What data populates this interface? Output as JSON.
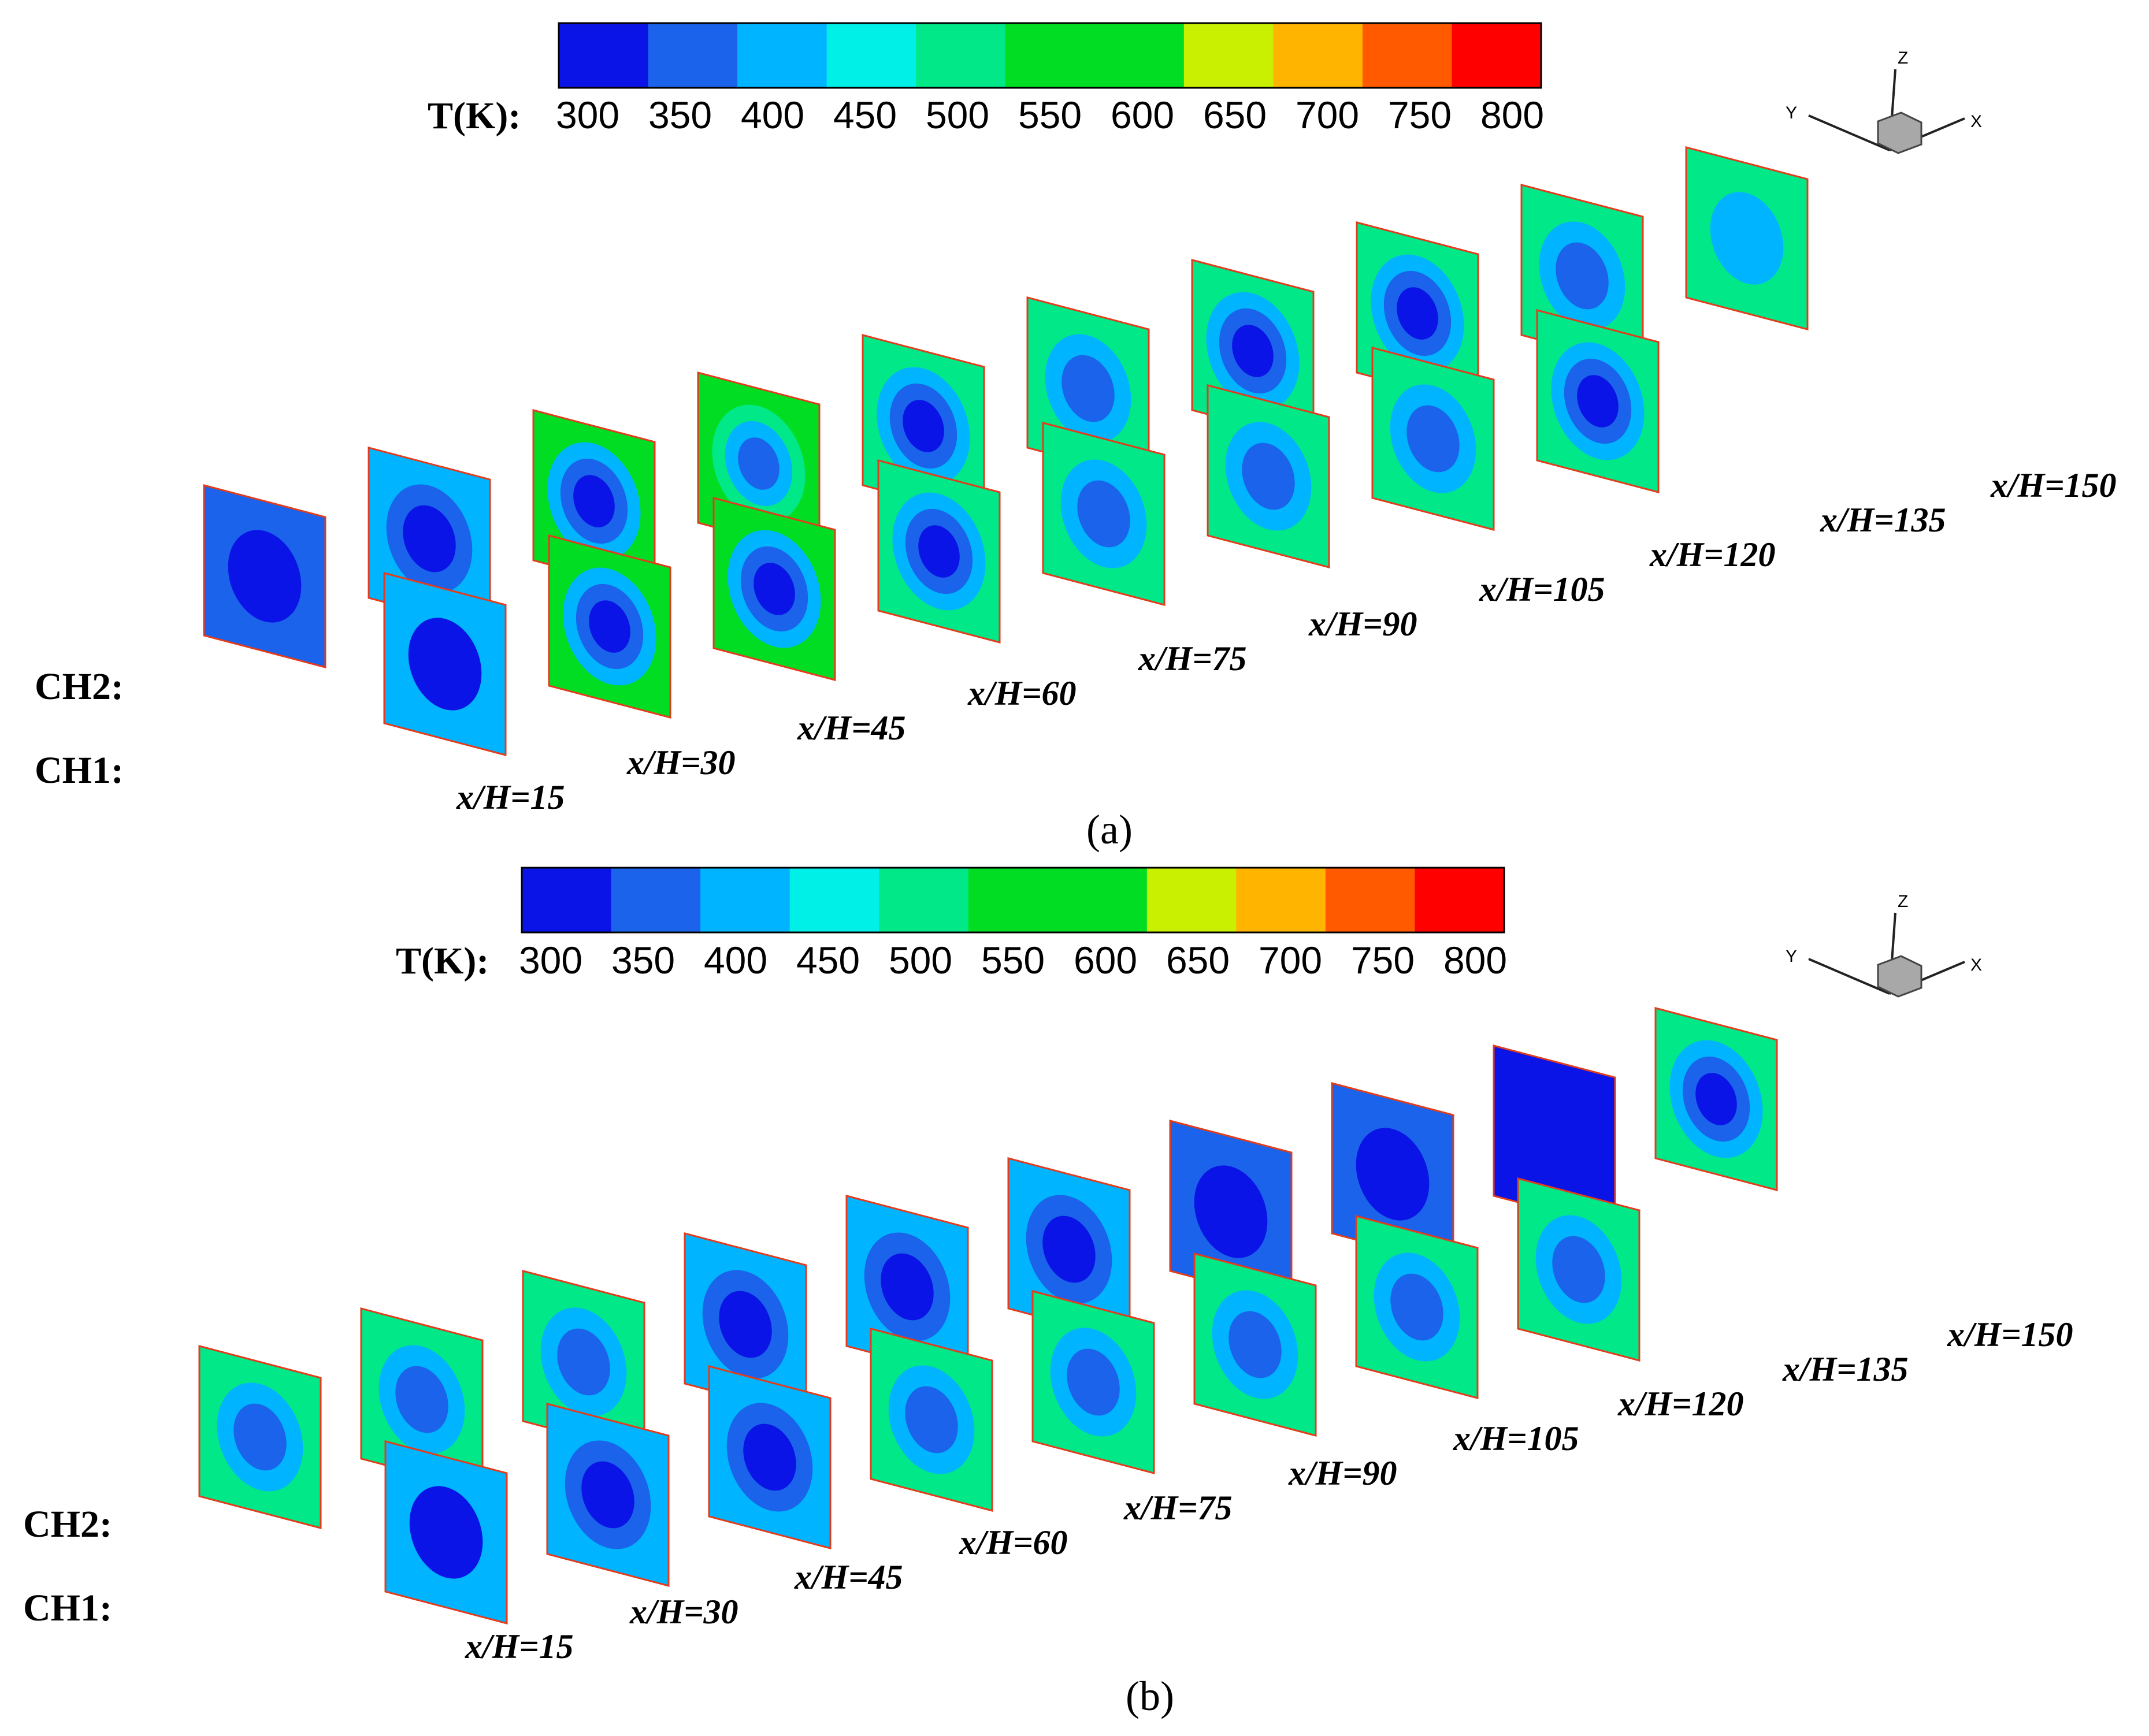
{
  "colorbar": {
    "label": "T(K):",
    "tick_labels": [
      "300",
      "350",
      "400",
      "450",
      "500",
      "550",
      "600",
      "650",
      "700",
      "750",
      "800"
    ],
    "colors": [
      "#0a14e6",
      "#1a63ea",
      "#00b4ff",
      "#00f0e8",
      "#00e887",
      "#00dd22",
      "#00dd22",
      "#c8f000",
      "#ffb400",
      "#ff5a00",
      "#ff0000"
    ]
  },
  "axis_triad": {
    "x": "X",
    "y": "Y",
    "z": "Z"
  },
  "panels": [
    {
      "caption": "(a)",
      "row_labels": {
        "upper": "CH2:",
        "lower": "CH1:"
      },
      "station_labels": [
        "x/H=15",
        "x/H=30",
        "x/H=45",
        "x/H=60",
        "x/H=75",
        "x/H=90",
        "x/H=105",
        "x/H=120",
        "x/H=135",
        "x/H=150"
      ],
      "ch2_rings": [
        [
          "#1a63ea",
          "#0a14e6"
        ],
        [
          "#00b4ff",
          "#1a63ea",
          "#0a14e6"
        ],
        [
          "#00dd22",
          "#00b4ff",
          "#1a63ea",
          "#0a14e6"
        ],
        [
          "#00dd22",
          "#00e887",
          "#00b4ff",
          "#1a63ea"
        ],
        [
          "#00e887",
          "#00b4ff",
          "#1a63ea",
          "#0a14e6"
        ],
        [
          "#00e887",
          "#00b4ff",
          "#1a63ea"
        ],
        [
          "#00e887",
          "#00b4ff",
          "#1a63ea",
          "#0a14e6"
        ],
        [
          "#00e887",
          "#00b4ff",
          "#1a63ea",
          "#0a14e6"
        ],
        [
          "#00e887",
          "#00b4ff",
          "#1a63ea"
        ],
        [
          "#00e887",
          "#00b4ff"
        ]
      ],
      "ch1_rings": [
        [
          "#00b4ff",
          "#0a14e6"
        ],
        [
          "#00dd22",
          "#00b4ff",
          "#1a63ea",
          "#0a14e6"
        ],
        [
          "#00dd22",
          "#00b4ff",
          "#1a63ea",
          "#0a14e6"
        ],
        [
          "#00e887",
          "#00b4ff",
          "#1a63ea",
          "#0a14e6"
        ],
        [
          "#00e887",
          "#00b4ff",
          "#1a63ea"
        ],
        [
          "#00e887",
          "#00b4ff",
          "#1a63ea"
        ],
        [
          "#00e887",
          "#00b4ff",
          "#1a63ea"
        ],
        [
          "#00e887",
          "#00b4ff",
          "#1a63ea",
          "#0a14e6"
        ]
      ]
    },
    {
      "caption": "(b)",
      "row_labels": {
        "upper": "CH2:",
        "lower": "CH1:"
      },
      "station_labels": [
        "x/H=15",
        "x/H=30",
        "x/H=45",
        "x/H=60",
        "x/H=75",
        "x/H=90",
        "x/H=105",
        "x/H=120",
        "x/H=135",
        "x/H=150"
      ],
      "ch2_rings": [
        [
          "#00e887",
          "#00b4ff",
          "#1a63ea"
        ],
        [
          "#00e887",
          "#00b4ff",
          "#1a63ea"
        ],
        [
          "#00e887",
          "#00b4ff",
          "#1a63ea"
        ],
        [
          "#00b4ff",
          "#1a63ea",
          "#0a14e6"
        ],
        [
          "#00b4ff",
          "#1a63ea",
          "#0a14e6"
        ],
        [
          "#00b4ff",
          "#1a63ea",
          "#0a14e6"
        ],
        [
          "#1a63ea",
          "#0a14e6"
        ],
        [
          "#1a63ea",
          "#0a14e6"
        ],
        [
          "#0a14e6"
        ],
        [
          "#00e887",
          "#00b4ff",
          "#1a63ea",
          "#0a14e6"
        ]
      ],
      "ch1_rings": [
        [
          "#00b4ff",
          "#0a14e6"
        ],
        [
          "#00b4ff",
          "#1a63ea",
          "#0a14e6"
        ],
        [
          "#00b4ff",
          "#1a63ea",
          "#0a14e6"
        ],
        [
          "#00e887",
          "#00b4ff",
          "#1a63ea"
        ],
        [
          "#00e887",
          "#00b4ff",
          "#1a63ea"
        ],
        [
          "#00e887",
          "#00b4ff",
          "#1a63ea"
        ],
        [
          "#00e887",
          "#00b4ff",
          "#1a63ea"
        ],
        [
          "#00e887",
          "#00b4ff",
          "#1a63ea"
        ]
      ]
    }
  ]
}
